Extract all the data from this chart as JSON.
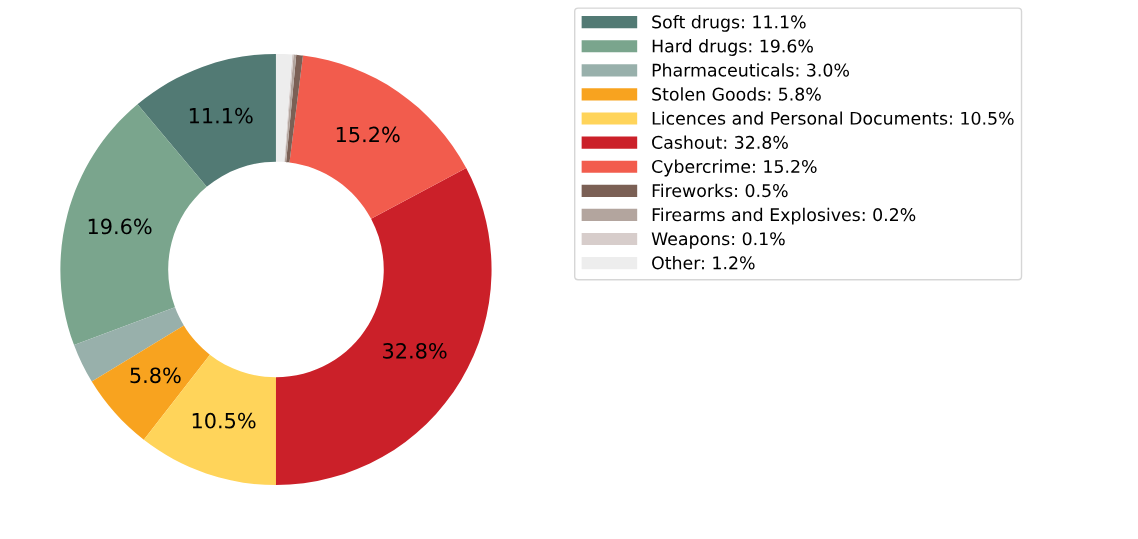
{
  "chart_data": {
    "type": "donut",
    "categories": [
      "Soft drugs: 11.1%",
      "Hard drugs: 19.6%",
      "Pharmaceuticals: 3.0%",
      "Stolen Goods: 5.8%",
      "Licences and Personal Documents: 10.5%",
      "Cashout: 32.8%",
      "Cybercrime: 15.2%",
      "Fireworks: 0.5%",
      "Firearms and Explosives: 0.2%",
      "Weapons: 0.1%",
      "Other: 1.2%"
    ],
    "values": [
      11.1,
      19.6,
      3.0,
      5.8,
      10.5,
      32.8,
      15.2,
      0.5,
      0.2,
      0.1,
      1.2
    ],
    "colors": [
      "#527a74",
      "#7aa58d",
      "#98b0ab",
      "#f8a31f",
      "#ffd45a",
      "#cb2029",
      "#f25c4d",
      "#7b6055",
      "#b3a59e",
      "#d7cdcb",
      "#ededed"
    ],
    "value_labels": [
      "11.1%",
      "19.6%",
      null,
      "5.8%",
      "10.5%",
      "32.8%",
      "15.2%",
      null,
      null,
      null,
      null
    ],
    "legend": "top right"
  }
}
